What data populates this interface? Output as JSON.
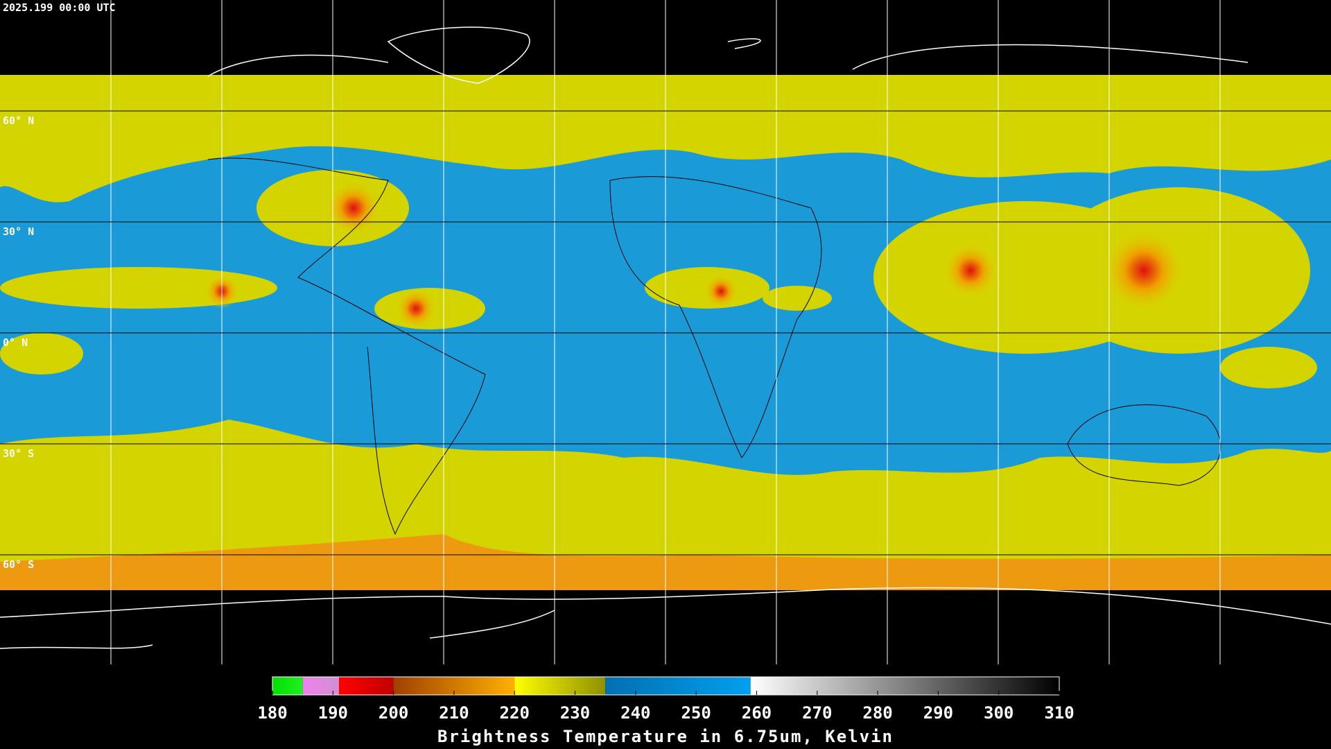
{
  "header": {
    "timestamp": "2025.199 00:00 UTC"
  },
  "map": {
    "latitude_labels": [
      "60° N",
      "30° N",
      "0° N",
      "30° S",
      "60° S"
    ]
  },
  "colorbar": {
    "label": "Brightness Temperature in 6.75um, Kelvin",
    "lim": [
      180,
      310
    ],
    "ticks": [
      180,
      190,
      200,
      210,
      220,
      230,
      240,
      250,
      260,
      270,
      280,
      290,
      300,
      310
    ],
    "segments": [
      {
        "from": 180,
        "to": 185,
        "colors": [
          "#00e000",
          "#20f020"
        ]
      },
      {
        "from": 185,
        "to": 191,
        "colors": [
          "#f080f0",
          "#d090d0"
        ]
      },
      {
        "from": 191,
        "to": 200,
        "colors": [
          "#ff0000",
          "#c00000"
        ]
      },
      {
        "from": 200,
        "to": 220,
        "colors": [
          "#a04000",
          "#ffb000"
        ]
      },
      {
        "from": 220,
        "to": 235,
        "colors": [
          "#ffff00",
          "#909000"
        ]
      },
      {
        "from": 235,
        "to": 259,
        "colors": [
          "#0070b0",
          "#00a0f0"
        ]
      },
      {
        "from": 259,
        "to": 310,
        "colors": [
          "#ffffff",
          "#000000"
        ]
      }
    ]
  }
}
